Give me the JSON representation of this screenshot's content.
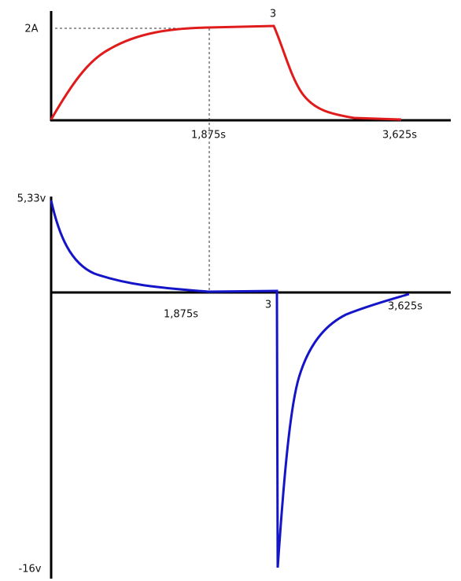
{
  "current_graph": {
    "peak": "2A",
    "switch_time": "3",
    "time_1": "1,875s",
    "time_2": "3,625s"
  },
  "voltage_graph": {
    "peak": "5,33v",
    "switch_time": "3",
    "time_1": "1,875s",
    "time_2": "3,625s",
    "minimum": "-16v"
  }
}
